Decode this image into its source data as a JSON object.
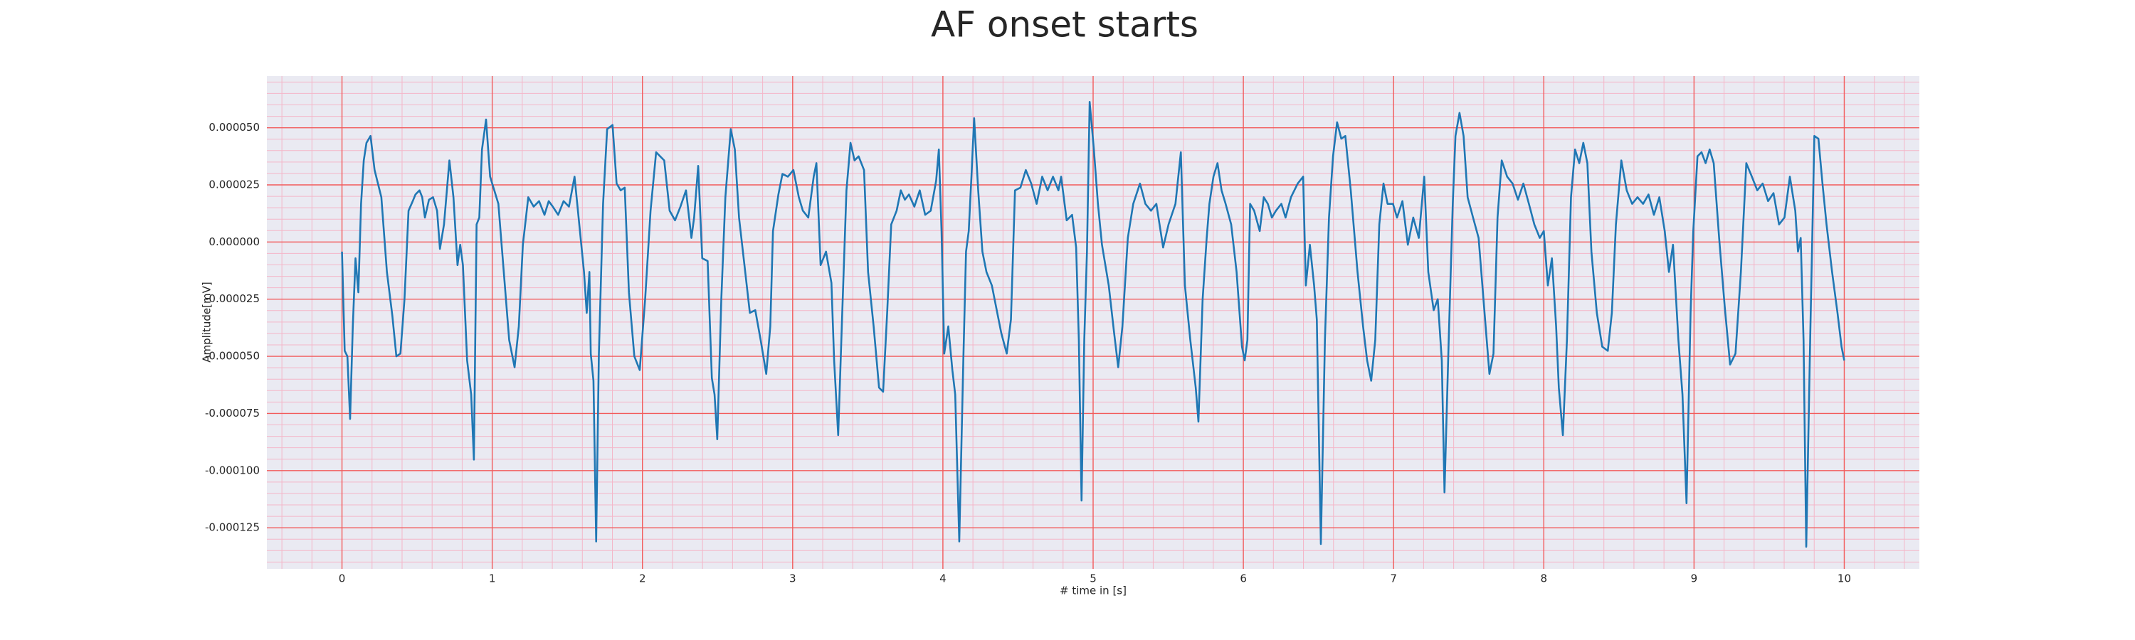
{
  "chart_data": {
    "type": "line",
    "title": "AF onset starts",
    "xlabel": "# time in [s]",
    "ylabel": "Amplitude[mV]",
    "color": "#1f77b4",
    "grid": true,
    "xlim": [
      -0.5,
      10.5
    ],
    "ylim": [
      -0.000143,
      7.26e-05
    ],
    "xticks": [
      0,
      1,
      2,
      3,
      4,
      5,
      6,
      7,
      8,
      9,
      10
    ],
    "yticks": [
      {
        "value": 5e-05,
        "label": "0.000050"
      },
      {
        "value": 2.5e-05,
        "label": "0.000025"
      },
      {
        "value": 0,
        "label": "0.000000"
      },
      {
        "value": -2.5e-05,
        "label": "-0.000025"
      },
      {
        "value": -5e-05,
        "label": "-0.000050"
      },
      {
        "value": -7.5e-05,
        "label": "-0.000075"
      },
      {
        "value": -0.0001,
        "label": "-0.000100"
      },
      {
        "value": -0.000125,
        "label": "-0.000125"
      }
    ],
    "x": [
      0,
      0.018,
      0.036,
      0.054,
      0.072,
      0.09,
      0.109,
      0.127,
      0.145,
      0.163,
      0.19,
      0.217,
      0.262,
      0.299,
      0.335,
      0.362,
      0.389,
      0.416,
      0.443,
      0.471,
      0.489,
      0.516,
      0.534,
      0.552,
      0.579,
      0.606,
      0.633,
      0.652,
      0.679,
      0.715,
      0.742,
      0.769,
      0.787,
      0.805,
      0.833,
      0.86,
      0.878,
      0.896,
      0.914,
      0.932,
      0.959,
      0.986,
      1.014,
      1.041,
      1.077,
      1.113,
      1.149,
      1.177,
      1.204,
      1.24,
      1.276,
      1.312,
      1.348,
      1.376,
      1.403,
      1.439,
      1.475,
      1.511,
      1.548,
      1.566,
      1.593,
      1.611,
      1.629,
      1.647,
      1.656,
      1.674,
      1.692,
      1.71,
      1.738,
      1.765,
      1.801,
      1.828,
      1.855,
      1.882,
      1.91,
      1.946,
      1.982,
      2.018,
      2.054,
      2.091,
      2.145,
      2.181,
      2.217,
      2.253,
      2.29,
      2.326,
      2.344,
      2.371,
      2.398,
      2.434,
      2.462,
      2.48,
      2.498,
      2.525,
      2.552,
      2.588,
      2.615,
      2.643,
      2.679,
      2.715,
      2.751,
      2.787,
      2.824,
      2.851,
      2.869,
      2.905,
      2.932,
      2.968,
      3.005,
      3.041,
      3.068,
      3.104,
      3.14,
      3.158,
      3.186,
      3.222,
      3.258,
      3.276,
      3.303,
      3.33,
      3.358,
      3.385,
      3.412,
      3.439,
      3.475,
      3.502,
      3.539,
      3.575,
      3.602,
      3.629,
      3.656,
      3.692,
      3.72,
      3.747,
      3.774,
      3.81,
      3.846,
      3.882,
      3.919,
      3.955,
      3.973,
      3.991,
      4.009,
      4.036,
      4.063,
      4.082,
      4.109,
      4.136,
      4.154,
      4.172,
      4.19,
      4.208,
      4.235,
      4.263,
      4.29,
      4.326,
      4.362,
      4.389,
      4.425,
      4.453,
      4.48,
      4.516,
      4.552,
      4.588,
      4.624,
      4.661,
      4.697,
      4.733,
      4.769,
      4.787,
      4.824,
      4.86,
      4.887,
      4.905,
      4.923,
      4.941,
      4.959,
      4.977,
      5.005,
      5.032,
      5.059,
      5.104,
      5.14,
      5.167,
      5.195,
      5.231,
      5.267,
      5.312,
      5.348,
      5.385,
      5.421,
      5.466,
      5.502,
      5.548,
      5.584,
      5.611,
      5.647,
      5.683,
      5.701,
      5.729,
      5.756,
      5.774,
      5.801,
      5.828,
      5.855,
      5.882,
      5.919,
      5.955,
      5.991,
      6.009,
      6.027,
      6.045,
      6.072,
      6.109,
      6.136,
      6.163,
      6.19,
      6.217,
      6.253,
      6.281,
      6.317,
      6.362,
      6.398,
      6.416,
      6.443,
      6.471,
      6.489,
      6.516,
      6.543,
      6.57,
      6.597,
      6.624,
      6.652,
      6.679,
      6.715,
      6.76,
      6.797,
      6.824,
      6.851,
      6.878,
      6.905,
      6.933,
      6.96,
      6.996,
      7.023,
      7.059,
      7.095,
      7.131,
      7.168,
      7.204,
      7.231,
      7.267,
      7.294,
      7.321,
      7.339,
      7.367,
      7.394,
      7.412,
      7.439,
      7.466,
      7.493,
      7.529,
      7.566,
      7.602,
      7.638,
      7.665,
      7.692,
      7.72,
      7.756,
      7.792,
      7.828,
      7.864,
      7.901,
      7.937,
      7.973,
      8.0,
      8.027,
      8.054,
      8.082,
      8.1,
      8.127,
      8.154,
      8.181,
      8.208,
      8.236,
      8.263,
      8.29,
      8.317,
      8.353,
      8.389,
      8.426,
      8.453,
      8.48,
      8.516,
      8.552,
      8.588,
      8.624,
      8.661,
      8.697,
      8.733,
      8.769,
      8.805,
      8.833,
      8.86,
      8.896,
      8.923,
      8.95,
      8.977,
      8.995,
      9.023,
      9.05,
      9.077,
      9.104,
      9.131,
      9.167,
      9.204,
      9.24,
      9.276,
      9.312,
      9.348,
      9.385,
      9.421,
      9.457,
      9.493,
      9.529,
      9.566,
      9.602,
      9.638,
      9.674,
      9.692,
      9.71,
      9.729,
      9.747,
      9.774,
      9.801,
      9.828,
      9.855,
      9.882,
      9.919,
      9.955,
      9.982,
      10.0
    ],
    "values": [
      -4.2e-06,
      -4.76e-05,
      -5e-05,
      -7.74e-05,
      -3.69e-05,
      -7.1e-06,
      -2.2e-05,
      1.67e-05,
      3.57e-05,
      4.34e-05,
      4.64e-05,
      3.15e-05,
      1.96e-05,
      -1.31e-05,
      -3.21e-05,
      -5e-05,
      -4.88e-05,
      -2.5e-05,
      1.37e-05,
      1.79e-05,
      2.08e-05,
      2.26e-05,
      1.96e-05,
      1.07e-05,
      1.85e-05,
      1.96e-05,
      1.37e-05,
      -3e-06,
      7.7e-06,
      3.57e-05,
      1.96e-05,
      -1.01e-05,
      -1.2e-06,
      -1.01e-05,
      -5.18e-05,
      -6.67e-05,
      -9.52e-05,
      7.7e-06,
      1.07e-05,
      4.05e-05,
      5.36e-05,
      2.86e-05,
      2.26e-05,
      1.67e-05,
      -1.31e-05,
      -4.29e-05,
      -5.48e-05,
      -3.69e-05,
      -1.2e-06,
      1.96e-05,
      1.55e-05,
      1.79e-05,
      1.19e-05,
      1.79e-05,
      1.55e-05,
      1.19e-05,
      1.79e-05,
      1.55e-05,
      2.86e-05,
      1.67e-05,
      -1.2e-06,
      -1.31e-05,
      -3.1e-05,
      -1.31e-05,
      -4.88e-05,
      -6.07e-05,
      -0.000131,
      -4.88e-05,
      1.67e-05,
      4.94e-05,
      5.12e-05,
      2.56e-05,
      2.26e-05,
      2.38e-05,
      -2.2e-05,
      -5e-05,
      -5.6e-05,
      -2.5e-05,
      1.37e-05,
      3.93e-05,
      3.57e-05,
      1.37e-05,
      9.5e-06,
      1.55e-05,
      2.26e-05,
      1.8e-06,
      1.07e-05,
      3.33e-05,
      -7.1e-06,
      -8.3e-06,
      -5.95e-05,
      -6.67e-05,
      -8.63e-05,
      -2.5e-05,
      1.96e-05,
      4.94e-05,
      4.05e-05,
      1.07e-05,
      -1.01e-05,
      -3.1e-05,
      -2.98e-05,
      -4.29e-05,
      -5.77e-05,
      -3.69e-05,
      4.8e-06,
      2.08e-05,
      2.98e-05,
      2.86e-05,
      3.15e-05,
      1.96e-05,
      1.37e-05,
      1.07e-05,
      2.86e-05,
      3.45e-05,
      -1.01e-05,
      -4.2e-06,
      -1.79e-05,
      -5.18e-05,
      -8.45e-05,
      -3.1e-05,
      2.26e-05,
      4.34e-05,
      3.57e-05,
      3.75e-05,
      3.15e-05,
      -1.31e-05,
      -3.69e-05,
      -6.37e-05,
      -6.55e-05,
      -3.1e-05,
      7.7e-06,
      1.37e-05,
      2.26e-05,
      1.85e-05,
      2.08e-05,
      1.55e-05,
      2.26e-05,
      1.19e-05,
      1.37e-05,
      2.68e-05,
      4.05e-05,
      4.8e-06,
      -4.88e-05,
      -3.69e-05,
      -5.6e-05,
      -6.67e-05,
      -0.000131,
      -5.18e-05,
      -4.2e-06,
      4.8e-06,
      2.86e-05,
      5.42e-05,
      2.26e-05,
      -4.2e-06,
      -1.31e-05,
      -1.9e-05,
      -3.1e-05,
      -3.99e-05,
      -4.88e-05,
      -3.39e-05,
      2.26e-05,
      2.38e-05,
      3.15e-05,
      2.56e-05,
      1.67e-05,
      2.86e-05,
      2.26e-05,
      2.86e-05,
      2.26e-05,
      2.86e-05,
      9.5e-06,
      1.19e-05,
      -2.4e-06,
      -4.29e-05,
      -0.0001131,
      -4.29e-05,
      -4.2e-06,
      6.13e-05,
      4.05e-05,
      1.67e-05,
      -1.2e-06,
      -1.9e-05,
      -3.99e-05,
      -5.48e-05,
      -3.69e-05,
      1.8e-06,
      1.67e-05,
      2.56e-05,
      1.67e-05,
      1.37e-05,
      1.67e-05,
      -2.4e-06,
      7.7e-06,
      1.67e-05,
      3.93e-05,
      -1.9e-05,
      -4.29e-05,
      -6.37e-05,
      -7.86e-05,
      -2.5e-05,
      1.8e-06,
      1.67e-05,
      2.86e-05,
      3.45e-05,
      2.26e-05,
      1.67e-05,
      7.7e-06,
      -1.31e-05,
      -4.58e-05,
      -5.18e-05,
      -4.29e-05,
      1.67e-05,
      1.37e-05,
      4.8e-06,
      1.96e-05,
      1.67e-05,
      1.07e-05,
      1.37e-05,
      1.67e-05,
      1.07e-05,
      1.96e-05,
      2.56e-05,
      2.86e-05,
      -1.9e-05,
      -1.2e-06,
      -1.9e-05,
      -3.39e-05,
      -0.0001321,
      -4.29e-05,
      1.07e-05,
      3.75e-05,
      5.24e-05,
      4.52e-05,
      4.64e-05,
      2.26e-05,
      -1.31e-05,
      -3.69e-05,
      -5.18e-05,
      -6.07e-05,
      -4.29e-05,
      7.7e-06,
      2.56e-05,
      1.67e-05,
      1.67e-05,
      1.07e-05,
      1.79e-05,
      -1.2e-06,
      1.07e-05,
      1.8e-06,
      2.86e-05,
      -1.31e-05,
      -2.98e-05,
      -2.5e-05,
      -5.18e-05,
      -0.0001095,
      -4.29e-05,
      1.67e-05,
      4.64e-05,
      5.65e-05,
      4.64e-05,
      1.96e-05,
      1.07e-05,
      1.8e-06,
      -2.8e-05,
      -5.77e-05,
      -4.88e-05,
      1.07e-05,
      3.57e-05,
      2.86e-05,
      2.56e-05,
      1.85e-05,
      2.56e-05,
      1.67e-05,
      7.7e-06,
      1.8e-06,
      4.8e-06,
      -1.9e-05,
      -7.1e-06,
      -3.69e-05,
      -6.37e-05,
      -8.45e-05,
      -4.29e-05,
      1.96e-05,
      4.05e-05,
      3.45e-05,
      4.34e-05,
      3.45e-05,
      -4.2e-06,
      -3.1e-05,
      -4.58e-05,
      -4.76e-05,
      -3.1e-05,
      7.7e-06,
      3.57e-05,
      2.26e-05,
      1.67e-05,
      1.96e-05,
      1.67e-05,
      2.08e-05,
      1.19e-05,
      1.96e-05,
      4.8e-06,
      -1.31e-05,
      -1.2e-06,
      -4.29e-05,
      -6.67e-05,
      -0.0001143,
      -3.1e-05,
      4.8e-06,
      3.75e-05,
      3.93e-05,
      3.45e-05,
      4.05e-05,
      3.45e-05,
      1.8e-06,
      -2.8e-05,
      -5.36e-05,
      -4.88e-05,
      -1.31e-05,
      3.45e-05,
      2.86e-05,
      2.26e-05,
      2.56e-05,
      1.79e-05,
      2.14e-05,
      7.7e-06,
      1.07e-05,
      2.86e-05,
      1.37e-05,
      -4.2e-06,
      1.8e-06,
      -4.29e-05,
      -0.0001333,
      -3.99e-05,
      4.64e-05,
      4.52e-05,
      2.56e-05,
      7.7e-06,
      -1.31e-05,
      -3.1e-05,
      -4.58e-05,
      -5.18e-05
    ]
  }
}
